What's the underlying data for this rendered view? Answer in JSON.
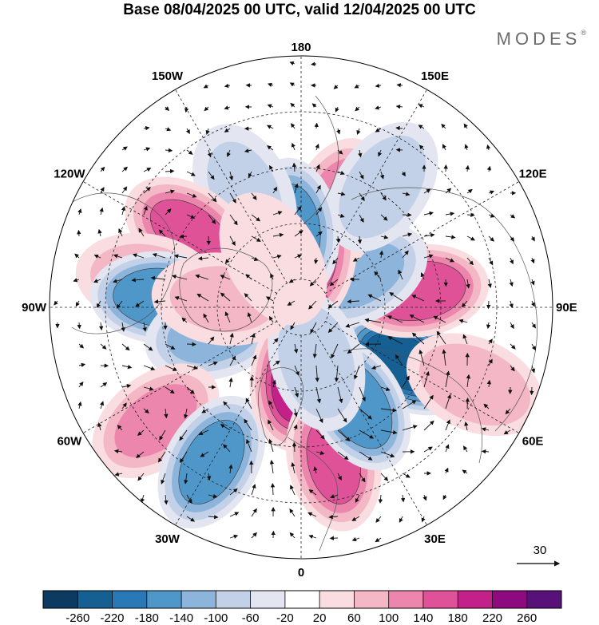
{
  "title": "Base 08/04/2025 00 UTC, valid 12/04/2025 00 UTC",
  "brand": "MODES",
  "brand_mark": "®",
  "longitude_labels": [
    "180",
    "150E",
    "120E",
    "90E",
    "60E",
    "30E",
    "0",
    "30W",
    "60W",
    "90W",
    "120W",
    "150W"
  ],
  "vector_reference": "30",
  "colorbar": {
    "ticks": [
      "-260",
      "-220",
      "-180",
      "-140",
      "-100",
      "-60",
      "-20",
      "20",
      "60",
      "100",
      "140",
      "180",
      "220",
      "260"
    ],
    "colors": [
      "#0d3a60",
      "#155f93",
      "#2879b5",
      "#4f97c9",
      "#8db4da",
      "#c3d1e8",
      "#e3e5f0",
      "#ffffff",
      "#f9dde0",
      "#f4b7c5",
      "#ec86ad",
      "#e05298",
      "#c4208a",
      "#8d0b7e",
      "#581178"
    ]
  },
  "anomalies": [
    {
      "lon": 62,
      "lat": 48,
      "value": -230
    },
    {
      "lon": 98,
      "lat": 48,
      "value": 170
    },
    {
      "lon": 118,
      "lat": 66,
      "value": -100
    },
    {
      "lon": 160,
      "lat": 52,
      "value": 120
    },
    {
      "lon": 170,
      "lat": 72,
      "value": 150
    },
    {
      "lon": 146,
      "lat": 38,
      "value": -80
    },
    {
      "lon": -174,
      "lat": 62,
      "value": -150
    },
    {
      "lon": -154,
      "lat": 44,
      "value": -60
    },
    {
      "lon": -124,
      "lat": 42,
      "value": 140
    },
    {
      "lon": -100,
      "lat": 34,
      "value": 80
    },
    {
      "lon": -94,
      "lat": 40,
      "value": -170
    },
    {
      "lon": -74,
      "lat": 58,
      "value": -110
    },
    {
      "lon": -52,
      "lat": 24,
      "value": 100
    },
    {
      "lon": -30,
      "lat": 26,
      "value": -150
    },
    {
      "lon": -4,
      "lat": 64,
      "value": 180
    },
    {
      "lon": 12,
      "lat": 34,
      "value": 140
    },
    {
      "lon": 30,
      "lat": 50,
      "value": -170
    },
    {
      "lon": 16,
      "lat": 70,
      "value": -90
    },
    {
      "lon": 66,
      "lat": 22,
      "value": 90
    },
    {
      "lon": -96,
      "lat": 62,
      "value": 60
    },
    {
      "lon": -150,
      "lat": 70,
      "value": 40
    }
  ]
}
